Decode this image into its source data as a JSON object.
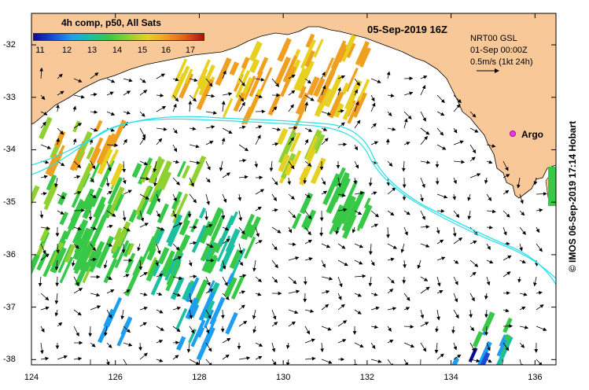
{
  "title": "05-Sep-2019 16Z",
  "legend": {
    "title": "4h comp, p50, All Sats",
    "ticks": [
      "11",
      "12",
      "13",
      "14",
      "15",
      "16",
      "17"
    ],
    "colors": [
      "#0a0a9a",
      "#1b4ad8",
      "#1e9ef0",
      "#1cc0a0",
      "#38c848",
      "#90d030",
      "#e8d020",
      "#f0a020",
      "#e06018",
      "#b01010"
    ]
  },
  "meta": {
    "line1": "NRT00 GSL",
    "line2": "01-Sep 00:00Z",
    "line3": "0.5m/s (1kt 24h)"
  },
  "argo_label": "Argo",
  "credit": "© IMOS 06-Sep-2019 17:14 Hobart",
  "axes": {
    "x_ticks": [
      "124",
      "126",
      "128",
      "130",
      "132",
      "134",
      "136"
    ],
    "y_ticks": [
      "-32",
      "-33",
      "-34",
      "-35",
      "-36",
      "-37",
      "-38"
    ],
    "lon_range": [
      124,
      136.5
    ],
    "lat_range": [
      -38.1,
      -31.4
    ]
  },
  "colors": {
    "land": "#f8c898",
    "current_line": "#30e0e8",
    "argo": "#e040e0"
  }
}
